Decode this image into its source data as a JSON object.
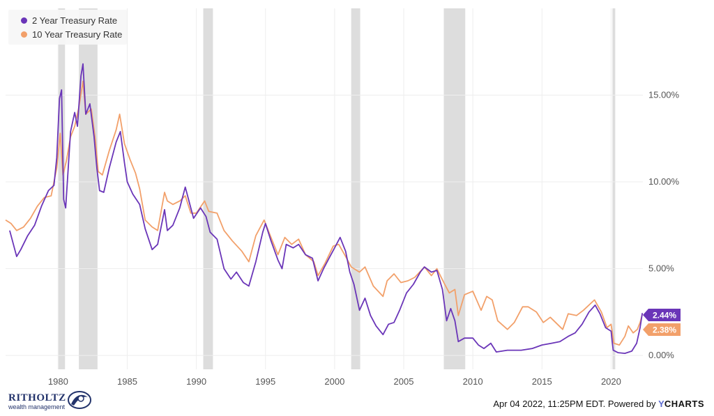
{
  "chart_data": {
    "type": "line",
    "title": "",
    "xlabel": "",
    "ylabel": "",
    "x_ticks": [
      "1980",
      "1985",
      "1990",
      "1995",
      "2000",
      "2005",
      "2010",
      "2015",
      "2020"
    ],
    "y_ticks": [
      "0.00%",
      "5.00%",
      "10.00%",
      "15.00%"
    ],
    "xlim": [
      1976.2,
      2022.3
    ],
    "ylim": [
      -0.8,
      20
    ],
    "grid": true,
    "legend_placement": "top-left",
    "recessions": [
      [
        1980.0,
        1980.5
      ],
      [
        1981.5,
        1982.85
      ],
      [
        1990.5,
        1991.2
      ],
      [
        2001.2,
        2001.85
      ],
      [
        2007.9,
        2009.45
      ],
      [
        2020.1,
        2020.3
      ]
    ],
    "series": [
      {
        "name": "2 Year Treasury Rate",
        "color": "#6a35b8",
        "last_label": "2.44%",
        "points": [
          [
            1976.5,
            7.2
          ],
          [
            1976.9,
            6.0
          ],
          [
            1977.0,
            5.7
          ],
          [
            1977.3,
            6.1
          ],
          [
            1977.8,
            6.9
          ],
          [
            1978.3,
            7.5
          ],
          [
            1978.8,
            8.6
          ],
          [
            1979.3,
            9.5
          ],
          [
            1979.7,
            9.8
          ],
          [
            1979.9,
            11.4
          ],
          [
            1980.1,
            14.8
          ],
          [
            1980.25,
            15.3
          ],
          [
            1980.4,
            9.0
          ],
          [
            1980.55,
            8.5
          ],
          [
            1980.9,
            12.9
          ],
          [
            1981.2,
            14.0
          ],
          [
            1981.4,
            13.2
          ],
          [
            1981.65,
            16.1
          ],
          [
            1981.8,
            16.8
          ],
          [
            1982.0,
            13.9
          ],
          [
            1982.3,
            14.5
          ],
          [
            1982.6,
            12.6
          ],
          [
            1982.8,
            10.8
          ],
          [
            1983.0,
            9.5
          ],
          [
            1983.3,
            9.4
          ],
          [
            1983.7,
            10.8
          ],
          [
            1984.2,
            12.3
          ],
          [
            1984.5,
            12.9
          ],
          [
            1984.8,
            11.1
          ],
          [
            1985.0,
            10.0
          ],
          [
            1985.4,
            9.3
          ],
          [
            1985.9,
            8.7
          ],
          [
            1986.3,
            7.3
          ],
          [
            1986.8,
            6.1
          ],
          [
            1987.2,
            6.4
          ],
          [
            1987.7,
            8.4
          ],
          [
            1987.9,
            7.2
          ],
          [
            1988.3,
            7.5
          ],
          [
            1988.8,
            8.5
          ],
          [
            1989.2,
            9.7
          ],
          [
            1989.4,
            9.1
          ],
          [
            1989.8,
            7.9
          ],
          [
            1990.3,
            8.5
          ],
          [
            1990.7,
            8.0
          ],
          [
            1991.0,
            7.1
          ],
          [
            1991.5,
            6.7
          ],
          [
            1992.0,
            5.0
          ],
          [
            1992.5,
            4.4
          ],
          [
            1992.9,
            4.8
          ],
          [
            1993.4,
            4.2
          ],
          [
            1993.8,
            4.0
          ],
          [
            1994.3,
            5.4
          ],
          [
            1994.8,
            7.1
          ],
          [
            1995.0,
            7.6
          ],
          [
            1995.4,
            6.6
          ],
          [
            1995.9,
            5.5
          ],
          [
            1996.2,
            5.0
          ],
          [
            1996.5,
            6.4
          ],
          [
            1997.0,
            6.2
          ],
          [
            1997.4,
            6.4
          ],
          [
            1997.9,
            5.8
          ],
          [
            1998.4,
            5.6
          ],
          [
            1998.8,
            4.3
          ],
          [
            1999.2,
            5.0
          ],
          [
            1999.6,
            5.6
          ],
          [
            2000.0,
            6.2
          ],
          [
            2000.4,
            6.8
          ],
          [
            2000.8,
            6.0
          ],
          [
            2001.1,
            4.8
          ],
          [
            2001.4,
            4.1
          ],
          [
            2001.8,
            2.6
          ],
          [
            2002.2,
            3.3
          ],
          [
            2002.6,
            2.3
          ],
          [
            2003.0,
            1.7
          ],
          [
            2003.5,
            1.2
          ],
          [
            2003.9,
            1.8
          ],
          [
            2004.3,
            1.9
          ],
          [
            2004.7,
            2.6
          ],
          [
            2005.2,
            3.6
          ],
          [
            2005.7,
            4.1
          ],
          [
            2006.2,
            4.8
          ],
          [
            2006.5,
            5.1
          ],
          [
            2007.0,
            4.8
          ],
          [
            2007.4,
            4.9
          ],
          [
            2007.8,
            3.8
          ],
          [
            2008.1,
            2.0
          ],
          [
            2008.4,
            2.7
          ],
          [
            2008.7,
            2.0
          ],
          [
            2008.95,
            0.8
          ],
          [
            2009.4,
            1.0
          ],
          [
            2010.0,
            1.0
          ],
          [
            2010.4,
            0.6
          ],
          [
            2010.8,
            0.4
          ],
          [
            2011.3,
            0.7
          ],
          [
            2011.7,
            0.2
          ],
          [
            2012.5,
            0.3
          ],
          [
            2013.5,
            0.3
          ],
          [
            2014.3,
            0.4
          ],
          [
            2015.0,
            0.6
          ],
          [
            2015.7,
            0.7
          ],
          [
            2016.3,
            0.8
          ],
          [
            2016.9,
            1.1
          ],
          [
            2017.4,
            1.3
          ],
          [
            2017.9,
            1.8
          ],
          [
            2018.4,
            2.5
          ],
          [
            2018.85,
            2.9
          ],
          [
            2019.2,
            2.4
          ],
          [
            2019.6,
            1.6
          ],
          [
            2020.0,
            1.4
          ],
          [
            2020.15,
            0.3
          ],
          [
            2020.5,
            0.16
          ],
          [
            2021.0,
            0.12
          ],
          [
            2021.5,
            0.25
          ],
          [
            2021.85,
            0.7
          ],
          [
            2022.1,
            1.6
          ],
          [
            2022.26,
            2.44
          ]
        ]
      },
      {
        "name": "10 Year Treasury Rate",
        "color": "#f2a06a",
        "last_label": "2.38%",
        "points": [
          [
            1976.2,
            7.8
          ],
          [
            1976.6,
            7.6
          ],
          [
            1977.0,
            7.2
          ],
          [
            1977.5,
            7.4
          ],
          [
            1978.0,
            7.9
          ],
          [
            1978.5,
            8.6
          ],
          [
            1979.0,
            9.1
          ],
          [
            1979.5,
            9.2
          ],
          [
            1979.9,
            10.8
          ],
          [
            1980.15,
            12.8
          ],
          [
            1980.35,
            10.4
          ],
          [
            1980.6,
            11.2
          ],
          [
            1980.9,
            12.6
          ],
          [
            1981.2,
            13.2
          ],
          [
            1981.5,
            14.3
          ],
          [
            1981.8,
            15.8
          ],
          [
            1982.0,
            13.9
          ],
          [
            1982.4,
            14.2
          ],
          [
            1982.7,
            12.4
          ],
          [
            1982.9,
            10.6
          ],
          [
            1983.2,
            10.4
          ],
          [
            1983.7,
            11.8
          ],
          [
            1984.2,
            13.0
          ],
          [
            1984.45,
            13.9
          ],
          [
            1984.8,
            12.2
          ],
          [
            1985.2,
            11.3
          ],
          [
            1985.6,
            10.5
          ],
          [
            1985.9,
            9.6
          ],
          [
            1986.3,
            7.8
          ],
          [
            1986.8,
            7.4
          ],
          [
            1987.2,
            7.2
          ],
          [
            1987.7,
            9.4
          ],
          [
            1987.9,
            8.9
          ],
          [
            1988.3,
            8.7
          ],
          [
            1988.8,
            8.9
          ],
          [
            1989.2,
            9.2
          ],
          [
            1989.6,
            8.2
          ],
          [
            1990.0,
            8.2
          ],
          [
            1990.6,
            8.9
          ],
          [
            1990.9,
            8.3
          ],
          [
            1991.5,
            8.2
          ],
          [
            1992.0,
            7.2
          ],
          [
            1992.6,
            6.6
          ],
          [
            1993.3,
            6.0
          ],
          [
            1993.8,
            5.4
          ],
          [
            1994.3,
            6.9
          ],
          [
            1994.9,
            7.8
          ],
          [
            1995.3,
            7.0
          ],
          [
            1995.9,
            5.8
          ],
          [
            1996.4,
            6.8
          ],
          [
            1996.9,
            6.4
          ],
          [
            1997.4,
            6.7
          ],
          [
            1997.9,
            5.8
          ],
          [
            1998.5,
            5.4
          ],
          [
            1998.8,
            4.6
          ],
          [
            1999.3,
            5.3
          ],
          [
            1999.9,
            6.3
          ],
          [
            2000.3,
            6.4
          ],
          [
            2000.8,
            5.7
          ],
          [
            2001.2,
            5.1
          ],
          [
            2001.8,
            4.8
          ],
          [
            2002.2,
            5.1
          ],
          [
            2002.8,
            4.0
          ],
          [
            2003.5,
            3.4
          ],
          [
            2003.8,
            4.3
          ],
          [
            2004.3,
            4.7
          ],
          [
            2004.8,
            4.2
          ],
          [
            2005.3,
            4.3
          ],
          [
            2005.8,
            4.5
          ],
          [
            2006.5,
            5.1
          ],
          [
            2007.0,
            4.6
          ],
          [
            2007.4,
            5.0
          ],
          [
            2007.9,
            4.2
          ],
          [
            2008.3,
            3.6
          ],
          [
            2008.7,
            3.8
          ],
          [
            2008.95,
            2.3
          ],
          [
            2009.4,
            3.5
          ],
          [
            2010.0,
            3.7
          ],
          [
            2010.6,
            2.6
          ],
          [
            2011.0,
            3.4
          ],
          [
            2011.4,
            3.2
          ],
          [
            2011.8,
            2.0
          ],
          [
            2012.5,
            1.5
          ],
          [
            2013.0,
            1.9
          ],
          [
            2013.6,
            2.8
          ],
          [
            2014.0,
            2.8
          ],
          [
            2014.6,
            2.5
          ],
          [
            2015.1,
            1.9
          ],
          [
            2015.6,
            2.2
          ],
          [
            2016.5,
            1.5
          ],
          [
            2016.9,
            2.4
          ],
          [
            2017.5,
            2.3
          ],
          [
            2018.0,
            2.6
          ],
          [
            2018.8,
            3.2
          ],
          [
            2019.3,
            2.5
          ],
          [
            2019.7,
            1.6
          ],
          [
            2020.0,
            1.8
          ],
          [
            2020.2,
            0.7
          ],
          [
            2020.6,
            0.6
          ],
          [
            2021.0,
            1.1
          ],
          [
            2021.25,
            1.7
          ],
          [
            2021.6,
            1.3
          ],
          [
            2021.9,
            1.5
          ],
          [
            2022.1,
            1.9
          ],
          [
            2022.26,
            2.38
          ]
        ]
      }
    ]
  },
  "footer": {
    "logo_name": "RITHOLTZ",
    "logo_tagline": "wealth management",
    "credit_text": "Apr 04 2022, 11:25PM EDT.  Powered by",
    "credit_brand_y": "Y",
    "credit_brand_rest": "CHARTS"
  },
  "colors": {
    "series_2yr": "#6a35b8",
    "series_10yr": "#f2a06a",
    "recession": "#dddddd",
    "grid": "#eeeeee",
    "logo": "#23336b"
  }
}
